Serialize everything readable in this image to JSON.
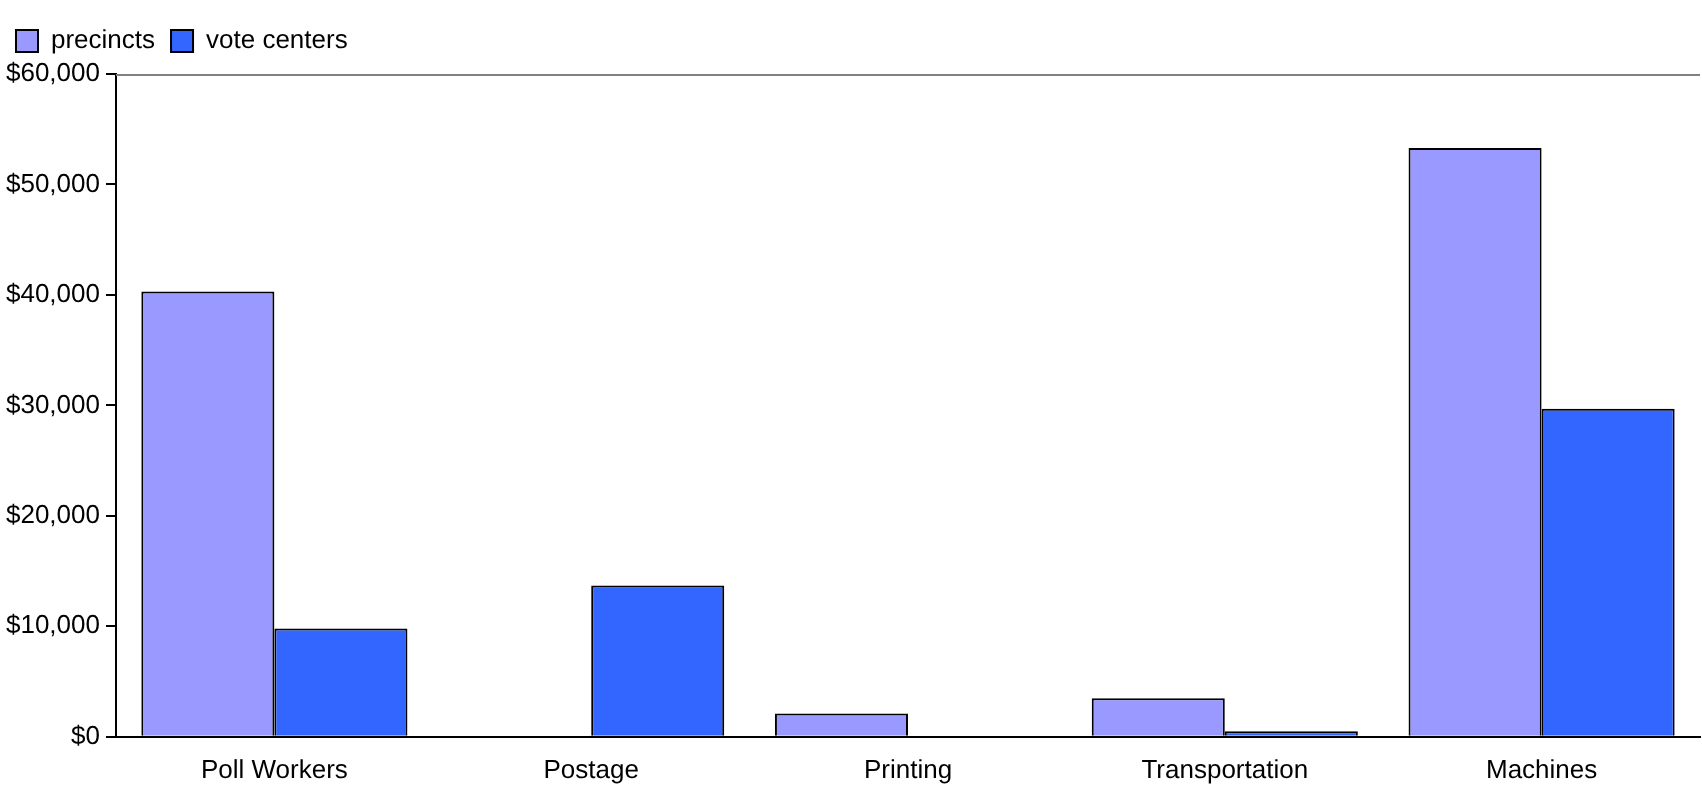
{
  "chart_data": {
    "type": "bar",
    "categories": [
      "Poll Workers",
      "Postage",
      "Printing",
      "Transportation",
      "Machines"
    ],
    "series": [
      {
        "name": "precincts",
        "color": "#9999ff",
        "values": [
          40300,
          0,
          2100,
          3500,
          53300
        ]
      },
      {
        "name": "vote centers",
        "color": "#3366ff",
        "values": [
          9800,
          13700,
          0,
          500,
          29700
        ]
      }
    ],
    "ylim": [
      0,
      60000
    ],
    "yticks": [
      {
        "value": 0,
        "label": "$0"
      },
      {
        "value": 10000,
        "label": "$10,000"
      },
      {
        "value": 20000,
        "label": "$20,000"
      },
      {
        "value": 30000,
        "label": "$30,000"
      },
      {
        "value": 40000,
        "label": "$40,000"
      },
      {
        "value": 50000,
        "label": "$50,000"
      },
      {
        "value": 60000,
        "label": "$60,000"
      }
    ],
    "grid": false,
    "legend": "top left"
  }
}
